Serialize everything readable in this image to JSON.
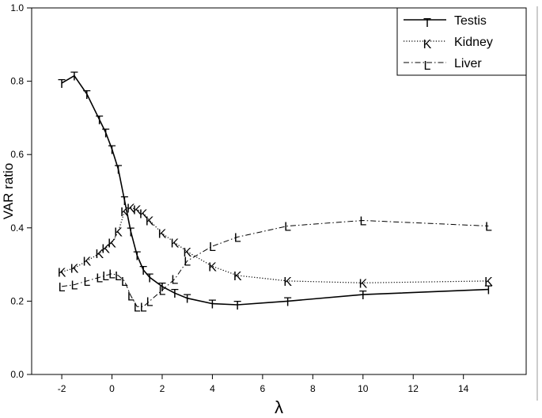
{
  "chart_data": {
    "type": "line",
    "xlabel": "λ",
    "ylabel": "VAR ratio",
    "xlim": [
      -3.2,
      16.5
    ],
    "ylim": [
      0.0,
      1.0
    ],
    "x_ticks": [
      -2,
      0,
      2,
      4,
      6,
      8,
      10,
      12,
      14
    ],
    "x_tick_labels": [
      "-2",
      "0",
      "2",
      "4",
      "6",
      "8",
      "10",
      "12",
      "14"
    ],
    "y_ticks": [
      0.0,
      0.2,
      0.4,
      0.6,
      0.8,
      1.0
    ],
    "y_tick_labels": [
      "0.0",
      "0.2",
      "0.4",
      "0.6",
      "0.8",
      "1.0"
    ],
    "grid": false,
    "legend_position": "top-right",
    "series": [
      {
        "name": "Testis",
        "marker": "T",
        "line_style": "solid",
        "x": [
          -2,
          -1.5,
          -1,
          -0.5,
          -0.25,
          0,
          0.25,
          0.5,
          0.75,
          1,
          1.25,
          1.5,
          2,
          2.5,
          3,
          4,
          5,
          7,
          10,
          15
        ],
        "y": [
          0.795,
          0.815,
          0.765,
          0.695,
          0.66,
          0.615,
          0.56,
          0.475,
          0.39,
          0.325,
          0.285,
          0.265,
          0.24,
          0.222,
          0.208,
          0.193,
          0.19,
          0.2,
          0.218,
          0.232
        ]
      },
      {
        "name": "Kidney",
        "marker": "K",
        "line_style": "dotted",
        "x": [
          -2,
          -1.5,
          -1,
          -0.5,
          -0.25,
          0,
          0.25,
          0.5,
          0.75,
          1,
          1.25,
          1.5,
          2,
          2.5,
          3,
          4,
          5,
          7,
          10,
          15
        ],
        "y": [
          0.28,
          0.29,
          0.31,
          0.33,
          0.345,
          0.36,
          0.39,
          0.445,
          0.455,
          0.45,
          0.44,
          0.42,
          0.385,
          0.36,
          0.335,
          0.295,
          0.27,
          0.255,
          0.25,
          0.255
        ]
      },
      {
        "name": "Liver",
        "marker": "L",
        "line_style": "dash-dot",
        "x": [
          -2,
          -1.5,
          -1,
          -0.5,
          -0.25,
          0,
          0.25,
          0.5,
          0.75,
          1,
          1.25,
          1.5,
          2,
          2.5,
          3,
          4,
          5,
          7,
          10,
          15
        ],
        "y": [
          0.24,
          0.245,
          0.255,
          0.265,
          0.27,
          0.275,
          0.27,
          0.255,
          0.215,
          0.185,
          0.185,
          0.2,
          0.23,
          0.26,
          0.31,
          0.35,
          0.375,
          0.405,
          0.42,
          0.405
        ]
      }
    ]
  }
}
